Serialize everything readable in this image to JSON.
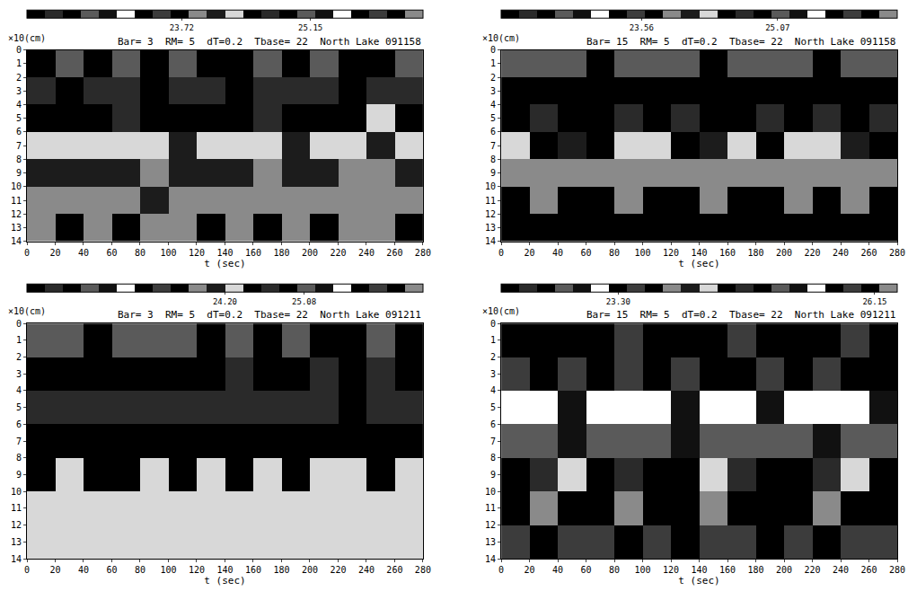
{
  "chart_data": [
    {
      "type": "heatmap",
      "title": "Bar= 3  RM= 5  dT=0.2  Tbase= 22  North Lake 091158",
      "xlabel": "t (sec)",
      "ylabel": "×10(cm)",
      "x": [
        10,
        30,
        50,
        70,
        90,
        110,
        130,
        150,
        170,
        190,
        210,
        230,
        250,
        270
      ],
      "y": [
        1,
        3,
        5,
        7,
        9,
        11,
        13
      ],
      "z": [
        [
          24.9,
          25.0,
          24.9,
          25.1,
          24.9,
          25.0,
          24.8,
          24.9,
          25.0,
          24.9,
          25.1,
          24.9,
          24.8,
          25.0
        ],
        [
          24.7,
          24.8,
          24.6,
          24.7,
          24.8,
          24.7,
          24.6,
          24.8,
          24.7,
          24.6,
          24.7,
          24.8,
          24.6,
          24.7
        ],
        [
          24.5,
          24.4,
          24.5,
          24.6,
          24.4,
          24.5,
          24.4,
          24.5,
          24.6,
          24.4,
          24.5,
          24.4,
          24.3,
          24.5
        ],
        [
          24.3,
          24.2,
          24.3,
          24.2,
          24.3,
          24.1,
          24.2,
          24.3,
          24.2,
          24.1,
          24.3,
          24.2,
          24.1,
          24.2
        ],
        [
          24.1,
          24.0,
          24.1,
          24.0,
          23.9,
          24.0,
          24.1,
          24.0,
          23.9,
          24.0,
          24.1,
          23.9,
          23.9,
          24.0
        ],
        [
          23.9,
          23.9,
          23.8,
          23.9,
          24.0,
          23.9,
          23.8,
          23.9,
          23.8,
          23.9,
          23.8,
          23.9,
          23.8,
          23.8
        ],
        [
          23.8,
          23.7,
          23.8,
          23.7,
          23.8,
          23.8,
          23.7,
          23.8,
          23.7,
          23.8,
          23.7,
          23.8,
          23.8,
          23.7
        ]
      ],
      "xlim": [
        0,
        280
      ],
      "xticks": [
        0,
        20,
        40,
        60,
        80,
        100,
        120,
        140,
        160,
        180,
        200,
        220,
        240,
        260,
        280
      ],
      "ylim": [
        14,
        0
      ],
      "yticks": [
        0,
        1,
        2,
        3,
        4,
        5,
        6,
        7,
        8,
        9,
        10,
        11,
        12,
        13,
        14
      ],
      "zlim": [
        22,
        26.4
      ],
      "zticks": [
        23.72,
        25.15
      ]
    },
    {
      "type": "heatmap",
      "title": "Bar= 15  RM= 5  dT=0.2  Tbase= 22  North Lake 091158",
      "xlabel": "t (sec)",
      "ylabel": "×10(cm)",
      "x": [
        10,
        30,
        50,
        70,
        90,
        110,
        130,
        150,
        170,
        190,
        210,
        230,
        250,
        270
      ],
      "y": [
        1,
        3,
        5,
        7,
        9,
        11,
        13
      ],
      "z": [
        [
          25.0,
          25.1,
          25.0,
          24.9,
          25.0,
          25.1,
          25.0,
          24.9,
          25.0,
          25.1,
          25.0,
          24.9,
          25.0,
          25.0
        ],
        [
          24.9,
          24.9,
          24.8,
          24.9,
          24.9,
          24.8,
          24.9,
          24.9,
          24.8,
          24.9,
          24.9,
          24.8,
          24.9,
          24.9
        ],
        [
          24.8,
          24.7,
          24.8,
          24.8,
          24.7,
          24.8,
          24.7,
          24.8,
          24.8,
          24.7,
          24.8,
          24.7,
          24.8,
          24.7
        ],
        [
          24.2,
          24.4,
          24.1,
          24.5,
          24.3,
          24.2,
          24.4,
          24.1,
          24.3,
          24.4,
          24.2,
          24.3,
          24.1,
          24.4
        ],
        [
          23.9,
          23.8,
          23.9,
          23.9,
          23.8,
          23.9,
          23.8,
          23.9,
          23.9,
          23.8,
          23.9,
          23.8,
          23.9,
          23.8
        ],
        [
          23.7,
          23.8,
          23.7,
          23.7,
          23.8,
          23.7,
          23.7,
          23.8,
          23.7,
          23.7,
          23.8,
          23.7,
          23.8,
          23.7
        ],
        [
          23.6,
          23.7,
          23.6,
          23.6,
          23.7,
          23.6,
          23.6,
          23.6,
          23.7,
          23.6,
          23.6,
          23.7,
          23.6,
          23.6
        ]
      ],
      "xlim": [
        0,
        280
      ],
      "xticks": [
        0,
        20,
        40,
        60,
        80,
        100,
        120,
        140,
        160,
        180,
        200,
        220,
        240,
        260,
        280
      ],
      "ylim": [
        14,
        0
      ],
      "yticks": [
        0,
        1,
        2,
        3,
        4,
        5,
        6,
        7,
        8,
        9,
        10,
        11,
        12,
        13,
        14
      ],
      "zlim": [
        22,
        26.4
      ],
      "zticks": [
        23.56,
        25.07
      ]
    },
    {
      "type": "heatmap",
      "title": "Bar= 3  RM= 5  dT=0.2  Tbase= 22  North Lake 091211",
      "xlabel": "t (sec)",
      "ylabel": "×10(cm)",
      "x": [
        10,
        30,
        50,
        70,
        90,
        110,
        130,
        150,
        170,
        190,
        210,
        230,
        250,
        270
      ],
      "y": [
        1,
        3,
        5,
        7,
        9,
        11,
        13
      ],
      "z": [
        [
          25.0,
          25.1,
          24.9,
          25.0,
          25.1,
          25.0,
          24.9,
          25.0,
          24.9,
          25.0,
          24.9,
          24.9,
          25.0,
          24.9
        ],
        [
          24.9,
          24.8,
          24.9,
          24.9,
          24.8,
          24.9,
          24.8,
          24.7,
          24.8,
          24.8,
          24.7,
          24.8,
          24.7,
          24.8
        ],
        [
          24.7,
          24.6,
          24.7,
          24.6,
          24.7,
          24.6,
          24.6,
          24.7,
          24.6,
          24.6,
          24.6,
          24.5,
          24.6,
          24.6
        ],
        [
          24.5,
          24.5,
          24.4,
          24.5,
          24.5,
          24.4,
          24.5,
          24.4,
          24.5,
          24.4,
          24.5,
          24.4,
          24.4,
          24.5
        ],
        [
          24.4,
          24.3,
          24.4,
          24.4,
          24.3,
          24.4,
          24.3,
          24.4,
          24.3,
          24.4,
          24.3,
          24.3,
          24.4,
          24.3
        ],
        [
          24.3,
          24.3,
          24.2,
          24.3,
          24.3,
          24.2,
          24.3,
          24.3,
          24.2,
          24.3,
          24.2,
          24.3,
          24.3,
          24.2
        ],
        [
          24.2,
          24.3,
          24.2,
          24.2,
          24.2,
          24.3,
          24.2,
          24.2,
          24.3,
          24.2,
          24.2,
          24.2,
          24.3,
          24.2
        ]
      ],
      "xlim": [
        0,
        280
      ],
      "xticks": [
        0,
        20,
        40,
        60,
        80,
        100,
        120,
        140,
        160,
        180,
        200,
        220,
        240,
        260,
        280
      ],
      "ylim": [
        14,
        0
      ],
      "yticks": [
        0,
        1,
        2,
        3,
        4,
        5,
        6,
        7,
        8,
        9,
        10,
        11,
        12,
        13,
        14
      ],
      "zlim": [
        22,
        26.4
      ],
      "zticks": [
        {
          "value": 24.2,
          "label": "24.20"
        },
        25.08
      ]
    },
    {
      "type": "heatmap",
      "title": "Bar= 15  RM= 5  dT=0.2  Tbase= 22  North Lake 091211",
      "xlabel": "t (sec)",
      "ylabel": "×10(cm)",
      "x": [
        10,
        30,
        50,
        70,
        90,
        110,
        130,
        150,
        170,
        190,
        210,
        230,
        250,
        270
      ],
      "y": [
        1,
        3,
        5,
        7,
        9,
        11,
        13
      ],
      "z": [
        [
          26.1,
          26.0,
          26.1,
          26.0,
          25.9,
          26.1,
          26.0,
          26.1,
          25.9,
          26.0,
          26.1,
          26.0,
          25.9,
          26.0
        ],
        [
          25.8,
          25.7,
          25.8,
          25.6,
          25.8,
          25.7,
          25.8,
          25.7,
          25.6,
          25.8,
          25.7,
          25.8,
          25.7,
          25.6
        ],
        [
          25.4,
          25.5,
          25.3,
          25.4,
          25.5,
          25.4,
          25.3,
          25.4,
          25.5,
          25.3,
          25.4,
          25.5,
          25.4,
          25.3
        ],
        [
          25.1,
          25.0,
          25.2,
          25.1,
          25.0,
          25.1,
          25.2,
          25.0,
          25.1,
          25.1,
          25.0,
          25.2,
          25.1,
          25.0
        ],
        [
          24.4,
          24.6,
          24.3,
          24.5,
          24.7,
          24.4,
          24.5,
          24.3,
          24.6,
          24.4,
          24.5,
          24.6,
          24.3,
          24.5
        ],
        [
          23.7,
          23.8,
          23.6,
          23.7,
          23.8,
          23.7,
          23.6,
          23.8,
          23.7,
          23.6,
          23.7,
          23.8,
          23.7,
          23.6
        ],
        [
          23.4,
          23.3,
          23.4,
          23.4,
          23.3,
          23.4,
          23.3,
          23.4,
          23.4,
          23.3,
          23.4,
          23.3,
          23.4,
          23.4
        ]
      ],
      "xlim": [
        0,
        280
      ],
      "xticks": [
        0,
        20,
        40,
        60,
        80,
        100,
        120,
        140,
        160,
        180,
        200,
        220,
        240,
        260,
        280
      ],
      "ylim": [
        14,
        0
      ],
      "yticks": [
        0,
        1,
        2,
        3,
        4,
        5,
        6,
        7,
        8,
        9,
        10,
        11,
        12,
        13,
        14
      ],
      "zlim": [
        22,
        26.4
      ],
      "zticks": [
        {
          "value": 23.3,
          "label": "23.30"
        },
        26.15
      ]
    }
  ]
}
